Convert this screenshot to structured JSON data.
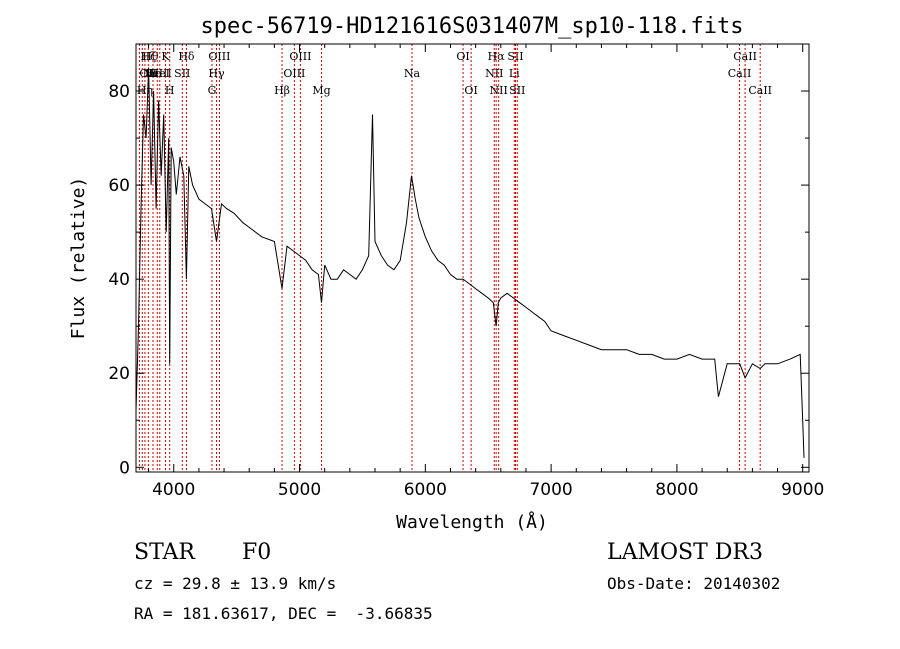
{
  "chart_data": {
    "type": "line",
    "title": "spec-56719-HD121616S031407M_sp10-118.fits",
    "xlabel": "Wavelength (Å)",
    "ylabel": "Flux (relative)",
    "xlim": [
      3700,
      9050
    ],
    "ylim": [
      -1,
      90
    ],
    "x_ticks": [
      4000,
      5000,
      6000,
      7000,
      8000,
      9000
    ],
    "y_ticks": [
      0,
      20,
      40,
      60,
      80
    ],
    "grid": false,
    "line_color": "#000000",
    "marker_color": "#cc0000",
    "series": [
      {
        "x": [
          3700,
          3720,
          3740,
          3760,
          3780,
          3800,
          3820,
          3840,
          3860,
          3880,
          3900,
          3920,
          3940,
          3960,
          3968,
          3980,
          4000,
          4020,
          4050,
          4080,
          4101,
          4120,
          4150,
          4200,
          4250,
          4300,
          4340,
          4380,
          4420,
          4480,
          4550,
          4600,
          4700,
          4800,
          4861,
          4900,
          4950,
          5000,
          5050,
          5100,
          5150,
          5175,
          5200,
          5250,
          5300,
          5350,
          5400,
          5450,
          5500,
          5550,
          5580,
          5600,
          5650,
          5700,
          5750,
          5800,
          5850,
          5890,
          5920,
          5950,
          6000,
          6050,
          6100,
          6150,
          6200,
          6250,
          6300,
          6350,
          6400,
          6450,
          6500,
          6540,
          6563,
          6580,
          6600,
          6650,
          6700,
          6750,
          6800,
          6850,
          6900,
          6950,
          7000,
          7100,
          7200,
          7300,
          7400,
          7500,
          7600,
          7700,
          7800,
          7900,
          8000,
          8100,
          8200,
          8300,
          8330,
          8400,
          8500,
          8542,
          8600,
          8662,
          8700,
          8800,
          8900,
          8980,
          9000,
          9010
        ],
        "y": [
          12,
          30,
          55,
          75,
          70,
          85,
          60,
          80,
          55,
          78,
          62,
          75,
          50,
          70,
          22,
          68,
          65,
          58,
          66,
          62,
          40,
          64,
          60,
          57,
          56,
          55,
          48,
          56,
          55,
          54,
          52,
          51,
          49,
          48,
          38,
          47,
          46,
          45,
          44,
          42,
          41,
          35,
          43,
          40,
          40,
          42,
          41,
          40,
          42,
          45,
          75,
          48,
          45,
          43,
          42,
          44,
          52,
          62,
          57,
          53,
          49,
          46,
          44,
          43,
          41,
          40,
          40,
          39,
          38,
          37,
          36,
          35,
          30,
          35,
          36,
          37,
          36,
          35,
          34,
          33,
          32,
          31,
          29,
          28,
          27,
          26,
          25,
          25,
          25,
          24,
          24,
          23,
          23,
          24,
          23,
          23,
          15,
          22,
          22,
          19,
          22,
          21,
          22,
          22,
          23,
          24,
          10,
          2
        ]
      }
    ],
    "line_markers": [
      {
        "wl": 3727,
        "label": "OII",
        "row": 1,
        "anchor": "start"
      },
      {
        "wl": 3750,
        "label": "Hθ",
        "row": 0,
        "anchor": "start"
      },
      {
        "wl": 3771,
        "label": "Hη",
        "row": 2,
        "anchor": "middle"
      },
      {
        "wl": 3798,
        "label": "Hζ",
        "row": 0,
        "anchor": "middle"
      },
      {
        "wl": 3835,
        "label": "Hε",
        "row": 1,
        "anchor": "middle"
      },
      {
        "wl": 3869,
        "label": "NeIII",
        "row": 1,
        "anchor": "middle"
      },
      {
        "wl": 3889,
        "label": "HeI",
        "row": 1,
        "anchor": "middle"
      },
      {
        "wl": 3934,
        "label": "K",
        "row": 0,
        "anchor": "middle"
      },
      {
        "wl": 3968,
        "label": "H",
        "row": 2,
        "anchor": "middle"
      },
      {
        "wl": 4068,
        "label": "SII",
        "row": 1,
        "anchor": "middle"
      },
      {
        "wl": 4101,
        "label": "Hδ",
        "row": 0,
        "anchor": "middle"
      },
      {
        "wl": 4304,
        "label": "G",
        "row": 2,
        "anchor": "middle"
      },
      {
        "wl": 4340,
        "label": "Hγ",
        "row": 1,
        "anchor": "middle"
      },
      {
        "wl": 4363,
        "label": "OIII",
        "row": 0,
        "anchor": "middle"
      },
      {
        "wl": 4861,
        "label": "Hβ",
        "row": 2,
        "anchor": "middle"
      },
      {
        "wl": 4959,
        "label": "OIII",
        "row": 1,
        "anchor": "middle"
      },
      {
        "wl": 5007,
        "label": "OIII",
        "row": 0,
        "anchor": "middle"
      },
      {
        "wl": 5175,
        "label": "Mg",
        "row": 2,
        "anchor": "middle"
      },
      {
        "wl": 5894,
        "label": "Na",
        "row": 1,
        "anchor": "middle"
      },
      {
        "wl": 6300,
        "label": "OI",
        "row": 0,
        "anchor": "middle"
      },
      {
        "wl": 6364,
        "label": "OI",
        "row": 2,
        "anchor": "middle"
      },
      {
        "wl": 6548,
        "label": "NII",
        "row": 1,
        "anchor": "middle"
      },
      {
        "wl": 6563,
        "label": "Hα",
        "row": 0,
        "anchor": "middle"
      },
      {
        "wl": 6583,
        "label": "NII",
        "row": 2,
        "anchor": "middle"
      },
      {
        "wl": 6707,
        "label": "Li",
        "row": 1,
        "anchor": "middle"
      },
      {
        "wl": 6717,
        "label": "SII",
        "row": 0,
        "anchor": "middle"
      },
      {
        "wl": 6731,
        "label": "SII",
        "row": 2,
        "anchor": "middle"
      },
      {
        "wl": 8498,
        "label": "CaII",
        "row": 1,
        "anchor": "middle"
      },
      {
        "wl": 8542,
        "label": "CaII",
        "row": 0,
        "anchor": "middle"
      },
      {
        "wl": 8662,
        "label": "CaII",
        "row": 2,
        "anchor": "middle"
      }
    ]
  },
  "info": {
    "class": "STAR",
    "subclass": "F0",
    "survey": "LAMOST DR3",
    "cz": "cz = 29.8 ± 13.9 km/s",
    "obs_date": "Obs-Date: 20140302",
    "coords": "RA = 181.63617, DEC =  -3.66835"
  }
}
